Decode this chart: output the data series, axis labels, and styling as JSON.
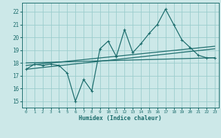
{
  "xlabel": "Humidex (Indice chaleur)",
  "background_color": "#cce8e8",
  "line_color": "#1a6b6b",
  "grid_color": "#99cccc",
  "xlim": [
    -0.5,
    23.5
  ],
  "ylim": [
    14.5,
    22.7
  ],
  "yticks": [
    15,
    16,
    17,
    18,
    19,
    20,
    21,
    22
  ],
  "xticks": [
    0,
    1,
    2,
    3,
    4,
    5,
    6,
    7,
    8,
    9,
    10,
    11,
    12,
    13,
    14,
    15,
    16,
    17,
    18,
    19,
    20,
    21,
    22,
    23
  ],
  "series1": [
    17.5,
    17.9,
    17.8,
    17.9,
    17.8,
    17.2,
    15.0,
    16.7,
    15.8,
    19.1,
    19.7,
    18.5,
    20.6,
    18.8,
    19.5,
    20.3,
    21.0,
    22.2,
    21.0,
    19.8,
    19.2,
    18.6,
    18.4,
    18.4
  ],
  "trend1_x": [
    0,
    23
  ],
  "trend1_y": [
    17.5,
    19.1
  ],
  "trend2_x": [
    0,
    23
  ],
  "trend2_y": [
    17.8,
    19.3
  ],
  "trend3_x": [
    0,
    23
  ],
  "trend3_y": [
    18.0,
    18.4
  ]
}
